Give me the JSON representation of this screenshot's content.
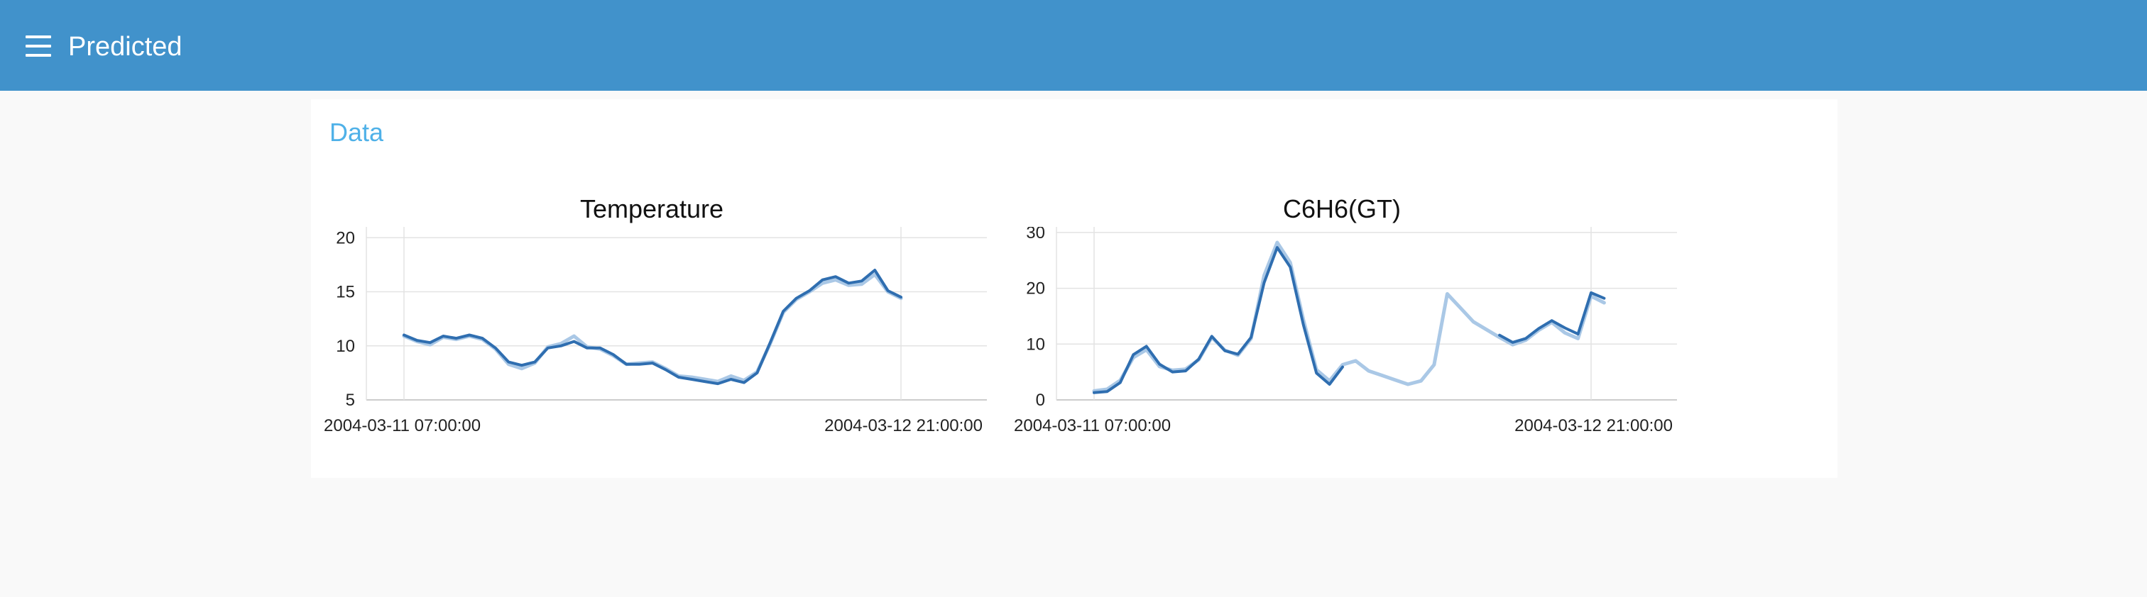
{
  "header": {
    "title": "Predicted",
    "menu_icon": "hamburger-menu-icon",
    "background_color": "#4192cb"
  },
  "section": {
    "title": "Data"
  },
  "colors": {
    "actual": "#2f6eb0",
    "predicted": "#aac8e6"
  },
  "chart_data": [
    {
      "type": "line",
      "title": "Temperature",
      "xlabel": "",
      "ylabel": "",
      "x_range": [
        0,
        38
      ],
      "ylim": [
        5,
        21
      ],
      "yticks": [
        5,
        10,
        15,
        20
      ],
      "xtick_labels": [
        {
          "index": 0,
          "label": "2004-03-11 07:00:00"
        },
        {
          "index": 38,
          "label": "2004-03-12 21:00:00"
        }
      ],
      "grid": true,
      "series": [
        {
          "role": "actual",
          "values": [
            11.0,
            10.5,
            10.3,
            10.9,
            10.7,
            11.0,
            10.7,
            9.8,
            8.5,
            8.2,
            8.5,
            9.8,
            10.0,
            10.4,
            9.8,
            9.8,
            9.2,
            8.3,
            8.3,
            8.4,
            7.8,
            7.1,
            6.9,
            6.7,
            6.5,
            6.9,
            6.6,
            7.5,
            10.3,
            13.2,
            14.4,
            15.1,
            16.1,
            16.4,
            15.8,
            16.0,
            17.0,
            15.1,
            14.5
          ]
        },
        {
          "role": "predicted",
          "values": [
            10.9,
            10.4,
            10.1,
            10.8,
            10.6,
            10.9,
            10.6,
            9.7,
            8.3,
            7.9,
            8.4,
            9.9,
            10.2,
            10.9,
            9.9,
            9.7,
            9.1,
            8.3,
            8.4,
            8.5,
            7.9,
            7.2,
            7.1,
            6.9,
            6.7,
            7.2,
            6.8,
            7.6,
            10.2,
            13.1,
            14.3,
            15.0,
            15.8,
            16.1,
            15.6,
            15.7,
            16.6,
            15.0,
            14.4
          ]
        }
      ]
    },
    {
      "type": "line",
      "title": "C6H6(GT)",
      "xlabel": "",
      "ylabel": "",
      "x_range": [
        0,
        38
      ],
      "ylim": [
        0,
        31
      ],
      "yticks": [
        0,
        10,
        20,
        30
      ],
      "xtick_labels": [
        {
          "index": 0,
          "label": "2004-03-11 07:00:00"
        },
        {
          "index": 38,
          "label": "2004-03-12 21:00:00"
        }
      ],
      "grid": true,
      "series": [
        {
          "role": "actual",
          "values": [
            1.3,
            1.5,
            3.1,
            8.1,
            9.6,
            6.4,
            5.0,
            5.2,
            7.3,
            11.4,
            8.8,
            8.2,
            11.2,
            21.0,
            27.3,
            23.8,
            13.5,
            4.8,
            2.8,
            5.9,
            null,
            null,
            null,
            null,
            null,
            null,
            null,
            null,
            null,
            null,
            null,
            11.6,
            10.3,
            11.0,
            12.8,
            14.2,
            12.9,
            11.8,
            19.2,
            18.2
          ]
        },
        {
          "role": "predicted",
          "values": [
            1.6,
            1.9,
            3.5,
            7.6,
            9.0,
            6.0,
            5.3,
            5.5,
            7.2,
            11.2,
            8.9,
            8.0,
            11.0,
            22.3,
            28.2,
            24.6,
            14.4,
            5.4,
            3.4,
            6.3,
            7.0,
            5.2,
            4.4,
            3.6,
            2.8,
            3.4,
            6.3,
            19.0,
            16.5,
            14.0,
            12.6,
            11.2,
            9.9,
            10.7,
            12.5,
            13.9,
            12.0,
            11.0,
            18.6,
            17.4
          ]
        }
      ]
    }
  ]
}
